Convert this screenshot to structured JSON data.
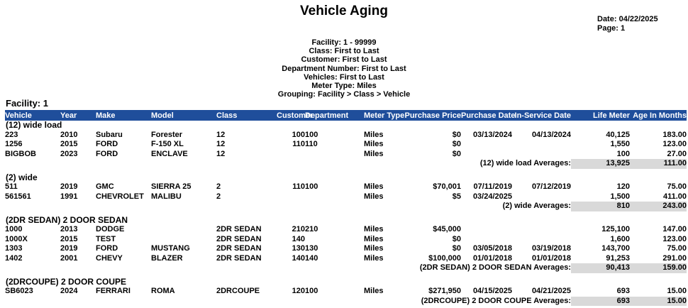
{
  "title": "Vehicle Aging",
  "meta": {
    "date_label": "Date:",
    "date_value": "04/22/2025",
    "page_label": "Page:",
    "page_value": "1"
  },
  "filters": [
    "Facility: 1 - 99999",
    "Class: First to Last",
    "Customer: First to Last",
    "Department Number: First to Last",
    "Vehicles: First to Last",
    "Meter Type: Miles",
    "Grouping: Facility > Class > Vehicle"
  ],
  "facility_group_label": "Facility: 1",
  "columns": [
    "Vehicle",
    "Year",
    "Make",
    "Model",
    "Class",
    "Customer",
    "Department",
    "Meter Type",
    "Purchase Price",
    "Purchase Date",
    "In-Service Date",
    "Life Meter",
    "Age In Months"
  ],
  "groups": [
    {
      "label": "(12) wide load",
      "rows": [
        [
          "223",
          "2010",
          "Subaru",
          "Forester",
          "12",
          "100",
          "100",
          "Miles",
          "$0",
          "03/13/2024",
          "04/13/2024",
          "40,125",
          "183.00"
        ],
        [
          "1256",
          "2015",
          "FORD",
          "F-150 XL",
          "12",
          "110",
          "110",
          "Miles",
          "$0",
          "",
          "",
          "1,550",
          "123.00"
        ],
        [
          "BIGBOB",
          "2023",
          "FORD",
          "ENCLAVE",
          "12",
          "",
          "",
          "Miles",
          "$0",
          "",
          "",
          "100",
          "27.00"
        ]
      ],
      "avg_label": "(12) wide load Averages:",
      "avg_life_meter": "13,925",
      "avg_age": "111.00"
    },
    {
      "label": "(2) wide",
      "rows": [
        [
          "511",
          "2019",
          "GMC",
          "SIERRA 25",
          "2",
          "110",
          "100",
          "Miles",
          "$70,001",
          "07/11/2019",
          "07/12/2019",
          "120",
          "75.00"
        ],
        [
          "561561",
          "1991",
          "CHEVROLET",
          "MALIBU",
          "2",
          "",
          "",
          "Miles",
          "$5",
          "03/24/2025",
          "",
          "1,500",
          "411.00"
        ]
      ],
      "avg_label": "(2) wide Averages:",
      "avg_life_meter": "810",
      "avg_age": "243.00"
    },
    {
      "label": "(2DR SEDAN) 2 DOOR SEDAN",
      "rows": [
        [
          "1000",
          "2013",
          "DODGE",
          "",
          "2DR SEDAN",
          "210",
          "210",
          "Miles",
          "$45,000",
          "",
          "",
          "125,100",
          "147.00"
        ],
        [
          "1000X",
          "2015",
          "TEST",
          "",
          "2DR SEDAN",
          "140",
          "",
          "Miles",
          "$0",
          "",
          "",
          "1,600",
          "123.00"
        ],
        [
          "1303",
          "2019",
          "FORD",
          "MUSTANG",
          "2DR SEDAN",
          "130",
          "130",
          "Miles",
          "$0",
          "03/05/2018",
          "03/19/2018",
          "143,700",
          "75.00"
        ],
        [
          "1402",
          "2001",
          "CHEVY",
          "BLAZER",
          "2DR SEDAN",
          "140",
          "140",
          "Miles",
          "$100,000",
          "01/01/2018",
          "01/01/2018",
          "91,253",
          "291.00"
        ]
      ],
      "avg_label": "(2DR SEDAN) 2 DOOR SEDAN Averages:",
      "avg_life_meter": "90,413",
      "avg_age": "159.00"
    },
    {
      "label": "(2DRCOUPE) 2 DOOR COUPE",
      "rows": [
        [
          "SB6023",
          "2024",
          "FERRARI",
          "ROMA",
          "2DRCOUPE",
          "120",
          "100",
          "Miles",
          "$271,950",
          "04/15/2025",
          "04/21/2025",
          "693",
          "15.00"
        ]
      ],
      "avg_label": "(2DRCOUPE) 2 DOOR COUPE Averages:",
      "avg_life_meter": "693",
      "avg_age": "15.00"
    }
  ],
  "colors": {
    "header_bg": "#1F4E9B",
    "header_text": "#FFFFFF",
    "avg_bg": "#D9D9D9"
  }
}
